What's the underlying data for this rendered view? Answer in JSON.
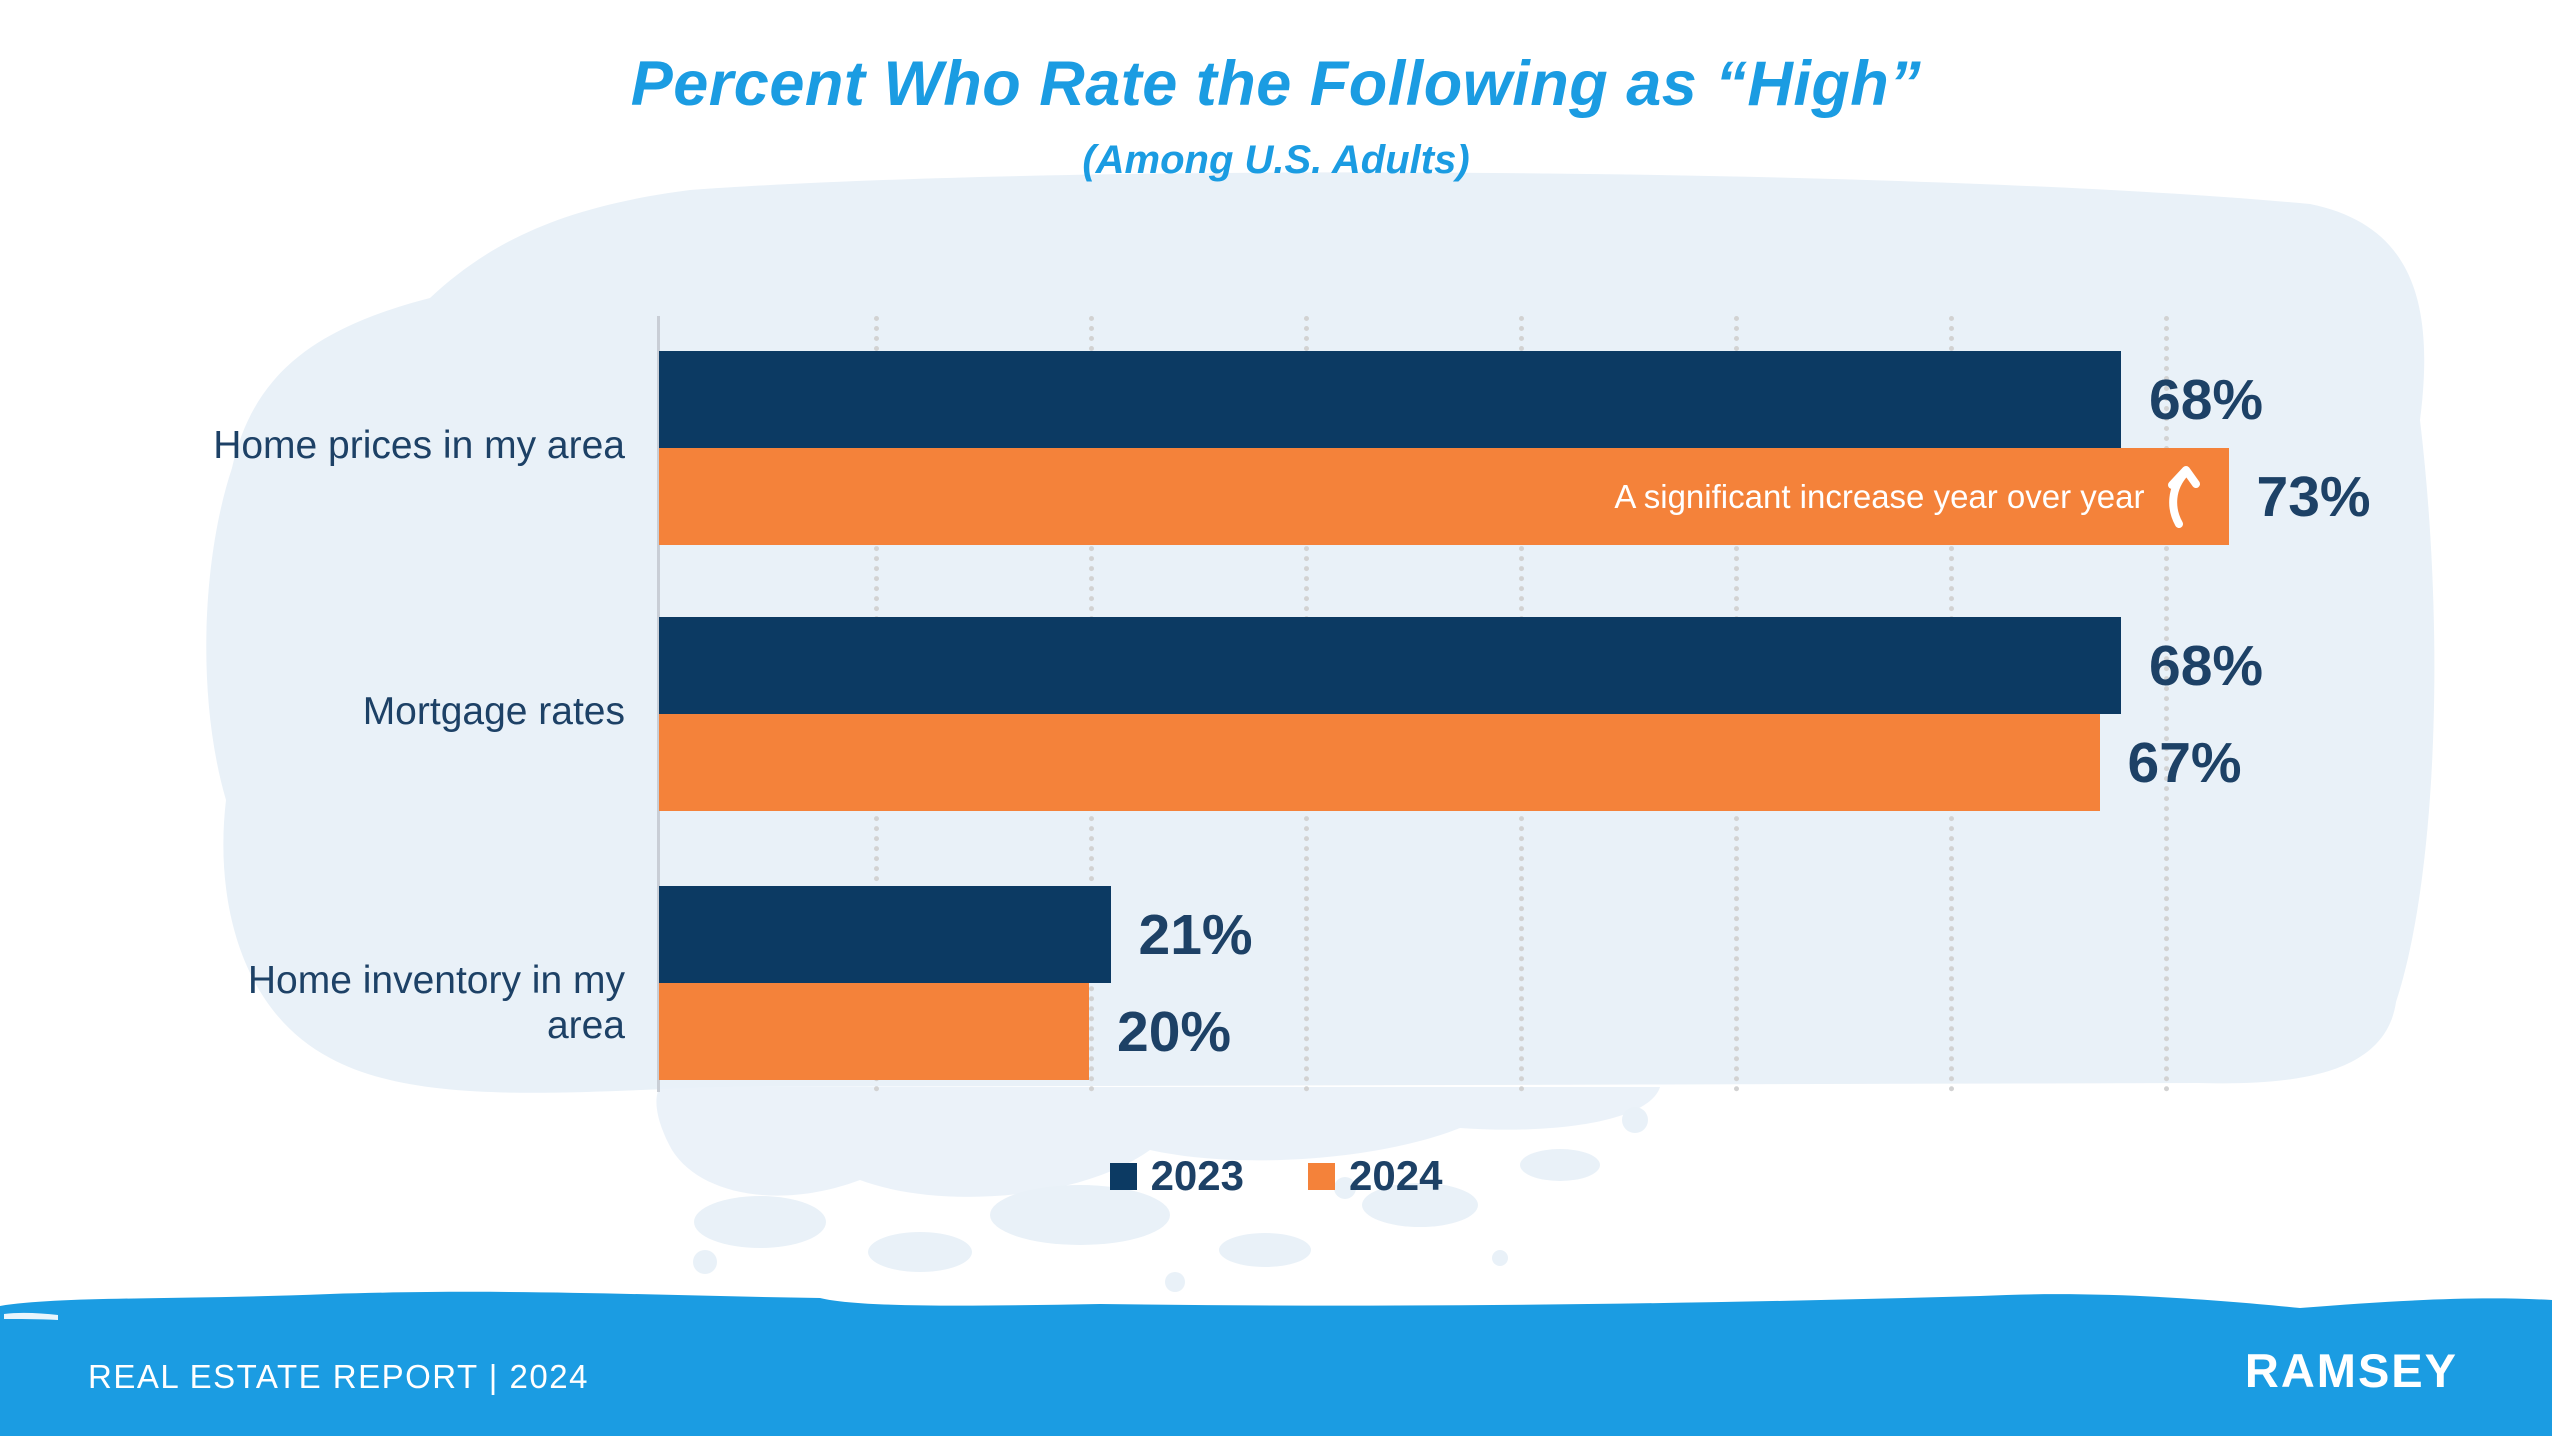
{
  "title": "Percent Who Rate the Following as “High”",
  "subtitle": "(Among U.S. Adults)",
  "chart_data": {
    "type": "bar",
    "orientation": "horizontal",
    "categories": [
      "Home prices in my area",
      "Mortgage rates",
      "Home inventory in my area"
    ],
    "series": [
      {
        "name": "2023",
        "values": [
          68,
          68,
          21
        ]
      },
      {
        "name": "2024",
        "values": [
          73,
          67,
          20
        ]
      }
    ],
    "value_suffix": "%",
    "xlim": [
      0,
      70
    ],
    "gridline_interval": 10,
    "grid": "dotted-vertical",
    "legend_position": "bottom",
    "annotation": {
      "text": "A significant increase year over year",
      "icon": "up-arrow-icon",
      "series": "2024",
      "category": "Home prices in my area"
    }
  },
  "legend": {
    "items": [
      {
        "label": "2023",
        "color": "#0c3a63"
      },
      {
        "label": "2024",
        "color": "#f4823a"
      }
    ]
  },
  "footer": {
    "report_label": "REAL ESTATE REPORT | 2024",
    "logo_text": "RAMSEY"
  },
  "colors": {
    "series_2023": "#0c3a63",
    "series_2024": "#f4823a",
    "title_blue": "#1b9ce2",
    "footer_blue": "#1b9ce2",
    "label_navy": "#1d4166",
    "wash_blue": "#e9f1f8",
    "gridline_gray": "#d2d2d2",
    "annotation_text": "#ffffff"
  }
}
